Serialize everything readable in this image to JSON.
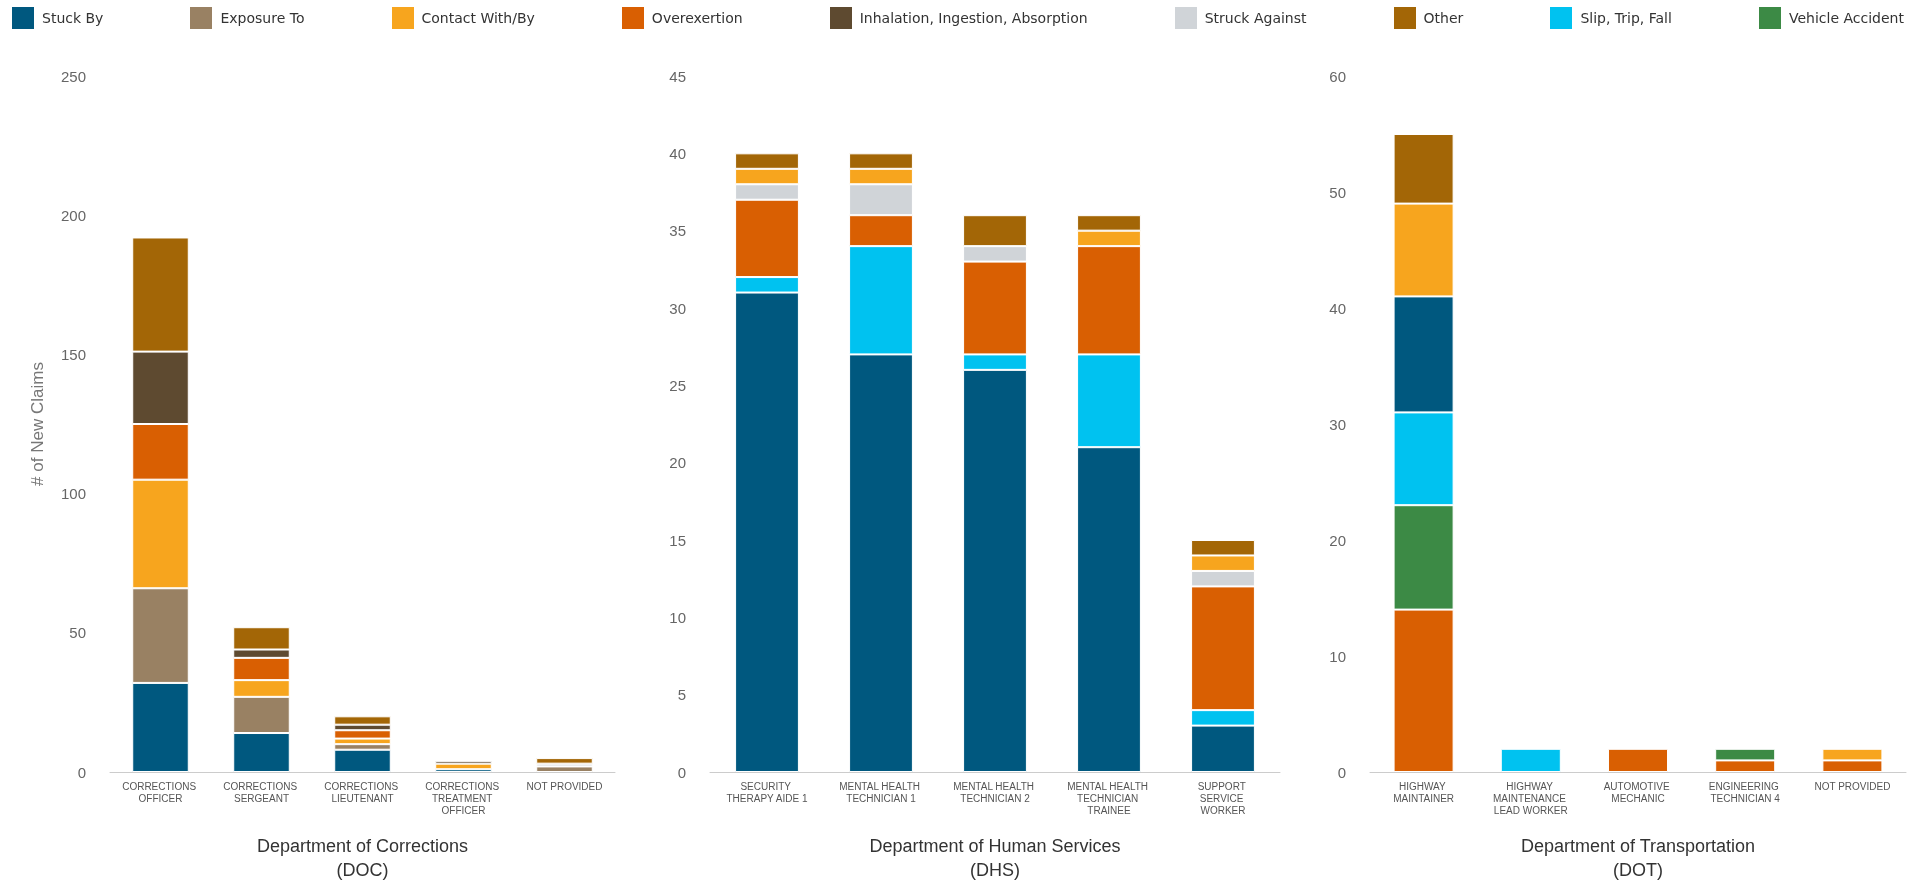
{
  "chart_data": [
    {
      "type": "bar",
      "stacked": true,
      "legend": "top",
      "xlabel": "Department of Corrections\n(DOC)",
      "ylabel": "# of New Claims",
      "categories": [
        "CORRECTIONS OFFICER",
        "CORRECTIONS SERGEANT",
        "CORRECTIONS LIEUTENANT",
        "CORRECTIONS TREATMENT OFFICER",
        "NOT PROVIDED"
      ],
      "ylim": [
        0,
        250
      ],
      "yticks": [
        0,
        50,
        100,
        150,
        200,
        250
      ],
      "grid": false,
      "series": [
        {
          "name": "Stuck By",
          "color": "#00587f",
          "values": [
            32,
            14,
            8,
            1,
            null
          ]
        },
        {
          "name": "Exposure To",
          "color": "#998163",
          "values": [
            34,
            13,
            2,
            null,
            2
          ]
        },
        {
          "name": "Contact With/By",
          "color": "#f7a51e",
          "values": [
            39,
            6,
            2,
            2,
            null
          ]
        },
        {
          "name": "Overexertion",
          "color": "#d95f02",
          "values": [
            20,
            8,
            3,
            null,
            null
          ]
        },
        {
          "name": "Inhalation, Ingestion, Absorption",
          "color": "#5e4a30",
          "values": [
            26,
            3,
            2,
            1,
            null
          ]
        },
        {
          "name": "Struck Against",
          "color": "#d0d4d8",
          "values": [
            null,
            null,
            null,
            null,
            1
          ]
        },
        {
          "name": "Other",
          "color": "#a36606",
          "values": [
            41,
            8,
            3,
            null,
            2
          ]
        }
      ]
    },
    {
      "type": "bar",
      "stacked": true,
      "legend": "top",
      "xlabel": "Department of Human Services\n(DHS)",
      "categories": [
        "SECURITY THERAPY AIDE 1",
        "MENTAL HEALTH TECHNICIAN 1",
        "MENTAL HEALTH TECHNICIAN 2",
        "MENTAL HEALTH TECHNICIAN TRAINEE",
        "SUPPORT SERVICE WORKER"
      ],
      "ylim": [
        0,
        45
      ],
      "yticks": [
        0,
        5,
        10,
        15,
        20,
        25,
        30,
        35,
        40,
        45
      ],
      "grid": false,
      "series": [
        {
          "name": "Stuck By",
          "color": "#00587f",
          "values": [
            31,
            27,
            26,
            21,
            3
          ]
        },
        {
          "name": "Slip, Trip, Fall",
          "color": "#00c2f0",
          "values": [
            1,
            7,
            1,
            6,
            1
          ]
        },
        {
          "name": "Overexertion",
          "color": "#d95f02",
          "values": [
            5,
            2,
            6,
            7,
            8
          ]
        },
        {
          "name": "Struck Against",
          "color": "#d0d4d8",
          "values": [
            1,
            2,
            1,
            null,
            1
          ]
        },
        {
          "name": "Contact With/By",
          "color": "#f7a51e",
          "values": [
            1,
            1,
            null,
            1,
            1
          ]
        },
        {
          "name": "Other",
          "color": "#a36606",
          "values": [
            1,
            1,
            2,
            1,
            1
          ]
        }
      ]
    },
    {
      "type": "bar",
      "stacked": true,
      "legend": "top",
      "xlabel": "Department of Transportation\n(DOT)",
      "categories": [
        "HIGHWAY MAINTAINER",
        "HIGHWAY MAINTENANCE LEAD WORKER",
        "AUTOMOTIVE MECHANIC",
        "ENGINEERING TECHNICIAN 4",
        "NOT PROVIDED"
      ],
      "ylim": [
        0,
        60
      ],
      "yticks": [
        0,
        10,
        20,
        30,
        40,
        50,
        60
      ],
      "grid": false,
      "series": [
        {
          "name": "Overexertion",
          "color": "#d95f02",
          "values": [
            14,
            null,
            2,
            1,
            1
          ]
        },
        {
          "name": "Vehicle Accident",
          "color": "#3c8a45",
          "values": [
            9,
            null,
            null,
            1,
            null
          ]
        },
        {
          "name": "Slip, Trip, Fall",
          "color": "#00c2f0",
          "values": [
            8,
            2,
            null,
            null,
            null
          ]
        },
        {
          "name": "Stuck By",
          "color": "#00587f",
          "values": [
            10,
            null,
            null,
            null,
            null
          ]
        },
        {
          "name": "Contact With/By",
          "color": "#f7a51e",
          "values": [
            8,
            null,
            null,
            null,
            1
          ]
        },
        {
          "name": "Other",
          "color": "#a36606",
          "values": [
            6,
            null,
            null,
            null,
            null
          ]
        }
      ]
    }
  ]
}
